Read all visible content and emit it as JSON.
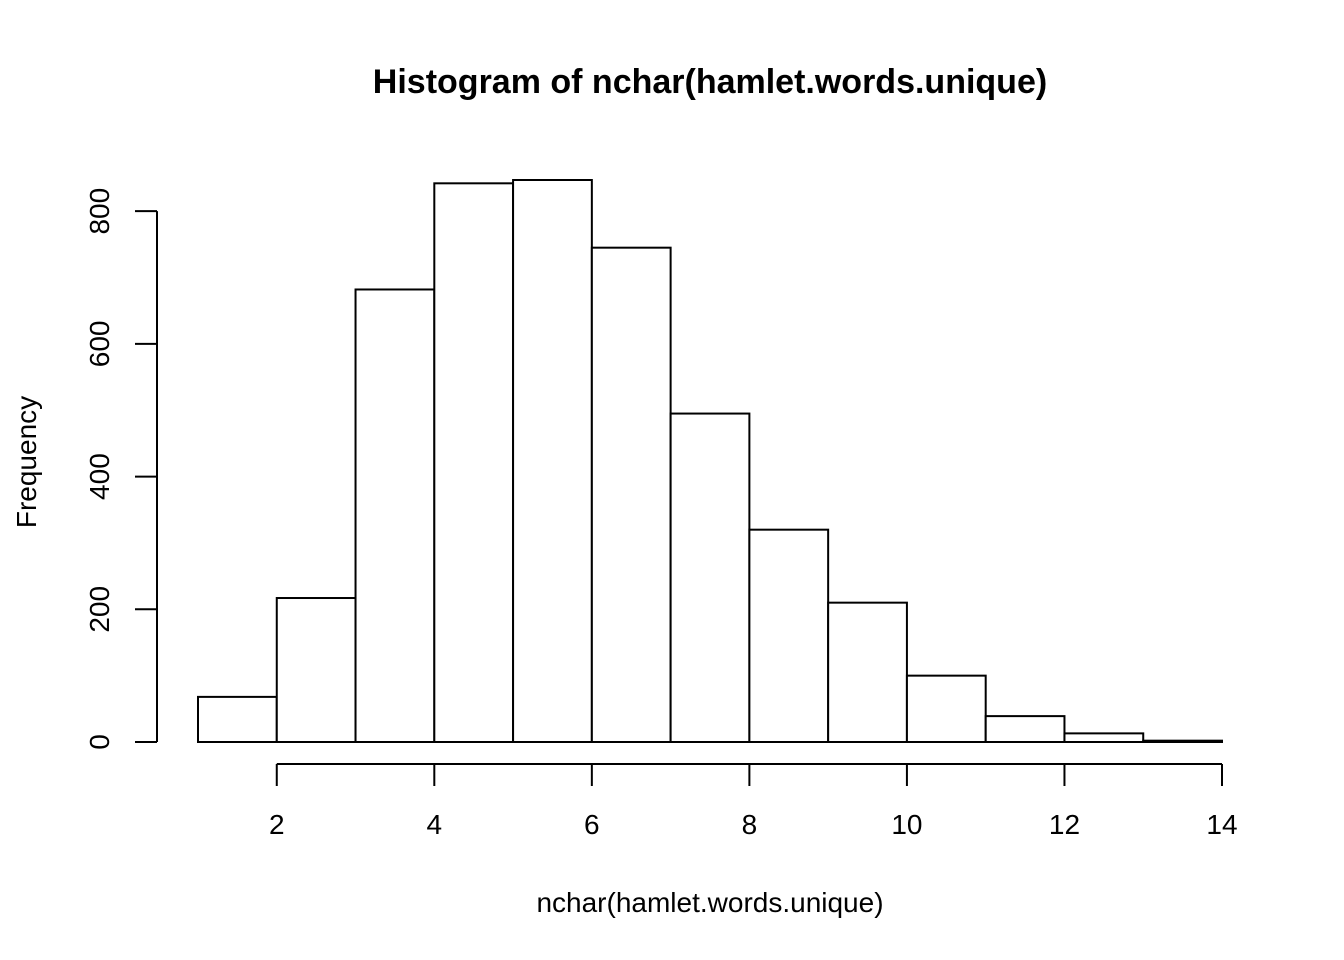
{
  "chart_data": {
    "type": "bar",
    "title": "Histogram of nchar(hamlet.words.unique)",
    "xlabel": "nchar(hamlet.words.unique)",
    "ylabel": "Frequency",
    "bins": [
      {
        "start": 1,
        "end": 2,
        "count": 68
      },
      {
        "start": 2,
        "end": 3,
        "count": 217
      },
      {
        "start": 3,
        "end": 4,
        "count": 682
      },
      {
        "start": 4,
        "end": 5,
        "count": 842
      },
      {
        "start": 5,
        "end": 6,
        "count": 847
      },
      {
        "start": 6,
        "end": 7,
        "count": 745
      },
      {
        "start": 7,
        "end": 8,
        "count": 495
      },
      {
        "start": 8,
        "end": 9,
        "count": 320
      },
      {
        "start": 9,
        "end": 10,
        "count": 210
      },
      {
        "start": 10,
        "end": 11,
        "count": 100
      },
      {
        "start": 11,
        "end": 12,
        "count": 39
      },
      {
        "start": 12,
        "end": 13,
        "count": 13
      },
      {
        "start": 13,
        "end": 14,
        "count": 2
      }
    ],
    "xlim": [
      1,
      14
    ],
    "ylim": [
      0,
      847
    ],
    "x_ticks": [
      2,
      4,
      6,
      8,
      10,
      12,
      14
    ],
    "y_ticks": [
      0,
      200,
      400,
      600,
      800
    ],
    "bar_fill": "#ffffff",
    "stroke_color": "#000000",
    "grid": false,
    "legend": "none"
  }
}
